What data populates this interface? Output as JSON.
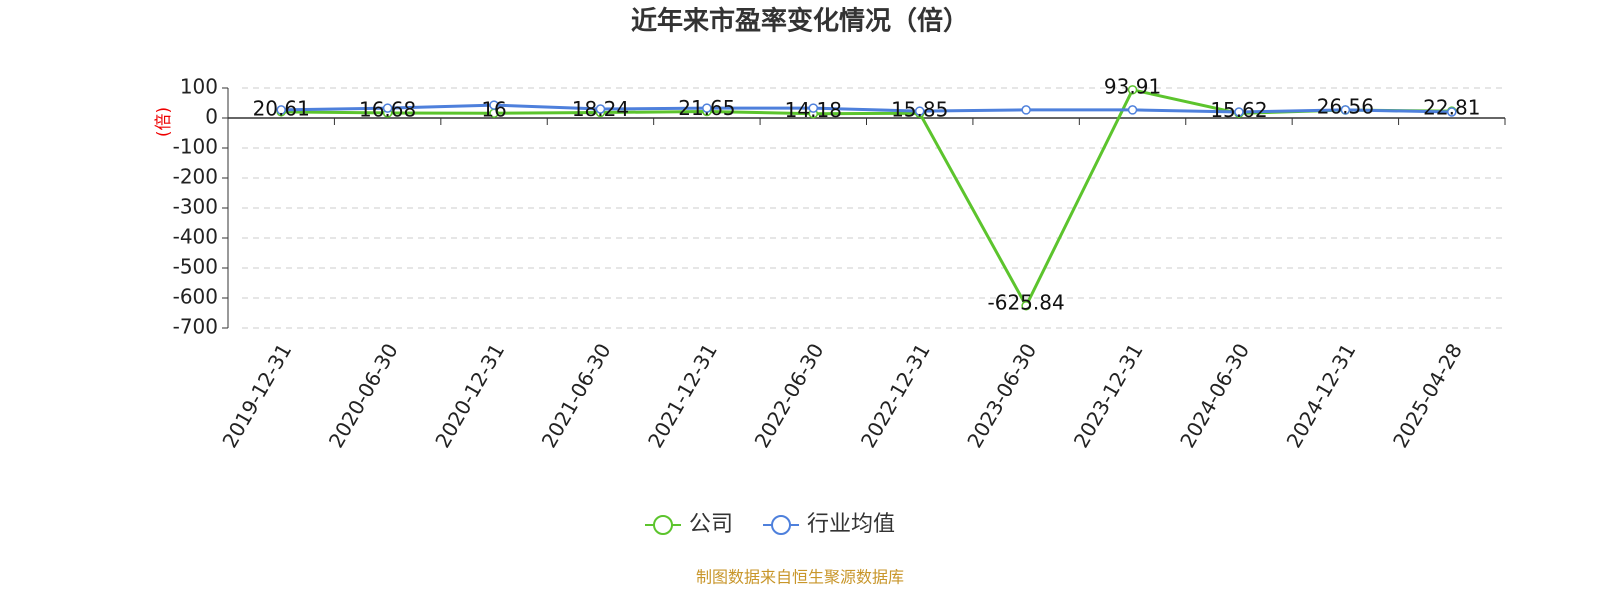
{
  "chart_data": {
    "type": "line",
    "title": "近年来市盈率变化情况（倍）",
    "y_label": "(倍)",
    "categories": [
      "2019-12-31",
      "2020-06-30",
      "2020-12-31",
      "2021-06-30",
      "2021-12-31",
      "2022-06-30",
      "2022-12-31",
      "2023-06-30",
      "2023-12-31",
      "2024-06-30",
      "2024-12-31",
      "2025-04-28"
    ],
    "series": [
      {
        "name": "公司",
        "color": "#5cc42d",
        "values": [
          20.61,
          16.68,
          16,
          18.24,
          21.65,
          14.18,
          15.85,
          -625.84,
          93.91,
          15.62,
          26.56,
          22.81
        ]
      },
      {
        "name": "行业均值",
        "color": "#4e80dc",
        "values": [
          27,
          33,
          43,
          30,
          33,
          33,
          23,
          27,
          27,
          20,
          27,
          20
        ]
      }
    ],
    "ylim": [
      -700,
      100
    ],
    "yticks": [
      -700,
      -600,
      -500,
      -400,
      -300,
      -200,
      -100,
      0,
      100
    ],
    "grid": true,
    "source": "制图数据来自恒生聚源数据库"
  }
}
